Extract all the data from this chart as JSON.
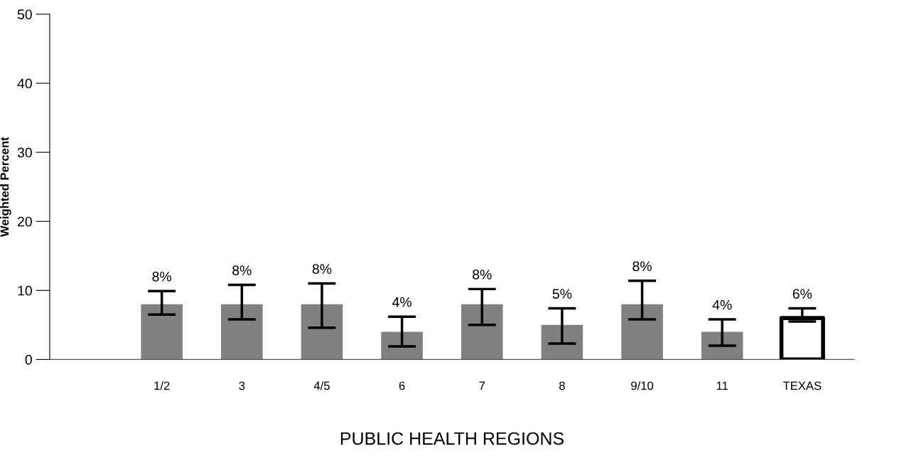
{
  "chart_data": {
    "type": "bar",
    "ylabel": "Weighted Percent",
    "xlabel": "PUBLIC HEALTH REGIONS",
    "categories": [
      "1/2",
      "3",
      "4/5",
      "6",
      "7",
      "8",
      "9/10",
      "11",
      "TEXAS"
    ],
    "values": [
      8,
      8,
      8,
      4,
      8,
      5,
      8,
      4,
      6
    ],
    "colors": [
      "#808080",
      "#808080",
      "#808080",
      "#808080",
      "#808080",
      "#808080",
      "#808080",
      "#808080",
      "#ffffff"
    ],
    "errors": [
      [
        6.5,
        9.9
      ],
      [
        5.8,
        10.8
      ],
      [
        4.6,
        11.0
      ],
      [
        1.9,
        6.2
      ],
      [
        5.0,
        10.2
      ],
      [
        2.3,
        7.4
      ],
      [
        5.8,
        11.4
      ],
      [
        2.0,
        5.8
      ],
      [
        5.5,
        7.4
      ]
    ],
    "value_labels": [
      "8%",
      "8%",
      "8%",
      "4%",
      "8%",
      "5%",
      "8%",
      "4%",
      "6%"
    ],
    "ylim": [
      0,
      50
    ],
    "yticks": [
      0,
      10,
      20,
      30,
      40,
      50
    ],
    "grid": false,
    "legend": false
  }
}
